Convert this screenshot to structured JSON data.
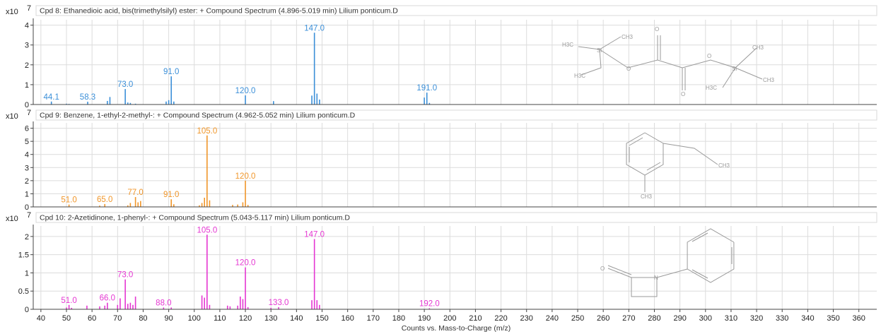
{
  "chart_data": {
    "type": "bar",
    "x_axis": {
      "label": "Counts vs. Mass-to-Charge (m/z)",
      "range": [
        37,
        367
      ],
      "ticks": [
        40,
        50,
        60,
        70,
        80,
        90,
        100,
        110,
        120,
        130,
        140,
        150,
        160,
        170,
        180,
        190,
        200,
        210,
        220,
        230,
        240,
        250,
        260,
        270,
        280,
        290,
        300,
        310,
        320,
        330,
        340,
        350,
        360
      ]
    },
    "panels": [
      {
        "title": "Cpd 8: Ethanedioic acid, bis(trimethylsilyl) ester: + Compound Spectrum (4.896-5.019 min) Lilium ponticum.D",
        "exponent_base": "x10",
        "exponent_power": "7",
        "color": "#3b8fd8",
        "ylim": [
          0,
          4.2
        ],
        "yticks": [
          0,
          1,
          2,
          3,
          4
        ],
        "peaks": [
          {
            "x": 44.1,
            "y": 0.15,
            "label": "44.1"
          },
          {
            "x": 50,
            "y": 0.04
          },
          {
            "x": 51,
            "y": 0.03
          },
          {
            "x": 58.3,
            "y": 0.14,
            "label": "58.3"
          },
          {
            "x": 66,
            "y": 0.18
          },
          {
            "x": 67,
            "y": 0.38
          },
          {
            "x": 73.0,
            "y": 0.78,
            "label": "73.0"
          },
          {
            "x": 74,
            "y": 0.1
          },
          {
            "x": 75,
            "y": 0.08
          },
          {
            "x": 77,
            "y": 0.04
          },
          {
            "x": 89,
            "y": 0.15
          },
          {
            "x": 90,
            "y": 0.22
          },
          {
            "x": 91.0,
            "y": 1.42,
            "label": "91.0"
          },
          {
            "x": 92,
            "y": 0.15
          },
          {
            "x": 120.0,
            "y": 0.46,
            "label": "120.0"
          },
          {
            "x": 131,
            "y": 0.17
          },
          {
            "x": 146,
            "y": 0.45
          },
          {
            "x": 147.0,
            "y": 3.62,
            "label": "147.0"
          },
          {
            "x": 148,
            "y": 0.55
          },
          {
            "x": 149,
            "y": 0.25
          },
          {
            "x": 190,
            "y": 0.35
          },
          {
            "x": 191.0,
            "y": 0.6,
            "label": "191.0"
          },
          {
            "x": 192,
            "y": 0.08
          }
        ],
        "structure": {
          "labels": [
            "CH3",
            "H3C",
            "Si",
            "H3C",
            "O",
            "O",
            "O",
            "O",
            "CH3",
            "Si",
            "H3C",
            "CH3"
          ]
        }
      },
      {
        "title": "Cpd 9: Benzene, 1-ethyl-2-methyl-: + Compound Spectrum (4.962-5.052 min) Lilium ponticum.D",
        "exponent_base": "x10",
        "exponent_power": "7",
        "color": "#f0962a",
        "ylim": [
          0,
          6.3
        ],
        "yticks": [
          0,
          1,
          2,
          3,
          4,
          5,
          6
        ],
        "peaks": [
          {
            "x": 51.0,
            "y": 0.18,
            "label": "51.0"
          },
          {
            "x": 63,
            "y": 0.1
          },
          {
            "x": 65.0,
            "y": 0.22,
            "label": "65.0"
          },
          {
            "x": 74,
            "y": 0.12
          },
          {
            "x": 75,
            "y": 0.3
          },
          {
            "x": 77.0,
            "y": 0.75,
            "label": "77.0"
          },
          {
            "x": 78,
            "y": 0.35
          },
          {
            "x": 79,
            "y": 0.45
          },
          {
            "x": 91.0,
            "y": 0.58,
            "label": "91.0"
          },
          {
            "x": 92,
            "y": 0.2
          },
          {
            "x": 102,
            "y": 0.12
          },
          {
            "x": 103,
            "y": 0.3
          },
          {
            "x": 104,
            "y": 0.7
          },
          {
            "x": 105.0,
            "y": 5.45,
            "label": "105.0"
          },
          {
            "x": 106,
            "y": 0.5
          },
          {
            "x": 115,
            "y": 0.15
          },
          {
            "x": 117,
            "y": 0.18
          },
          {
            "x": 119,
            "y": 0.35
          },
          {
            "x": 120.0,
            "y": 2.0,
            "label": "120.0"
          },
          {
            "x": 121,
            "y": 0.15
          }
        ],
        "structure": {
          "labels": [
            "CH3",
            "CH3"
          ]
        }
      },
      {
        "title": "Cpd 10: 2-Azetidinone, 1-phenyl-: + Compound Spectrum (5.043-5.117 min) Lilium ponticum.D",
        "exponent_base": "x10",
        "exponent_power": "7",
        "color": "#e536d2",
        "ylim": [
          0,
          2.25
        ],
        "yticks": [
          0,
          0.5,
          1,
          1.5,
          2
        ],
        "ytick_labels": [
          "0",
          "0.5",
          "1",
          "1.5",
          "2"
        ],
        "peaks": [
          {
            "x": 50,
            "y": 0.05
          },
          {
            "x": 51.0,
            "y": 0.12,
            "label": "51.0"
          },
          {
            "x": 52,
            "y": 0.04
          },
          {
            "x": 58,
            "y": 0.1
          },
          {
            "x": 63,
            "y": 0.08
          },
          {
            "x": 65,
            "y": 0.1
          },
          {
            "x": 66.0,
            "y": 0.18,
            "label": "66.0"
          },
          {
            "x": 70,
            "y": 0.12
          },
          {
            "x": 71,
            "y": 0.3
          },
          {
            "x": 73.0,
            "y": 0.82,
            "label": "73.0"
          },
          {
            "x": 74,
            "y": 0.15
          },
          {
            "x": 75,
            "y": 0.18
          },
          {
            "x": 76,
            "y": 0.12
          },
          {
            "x": 77,
            "y": 0.35
          },
          {
            "x": 88.0,
            "y": 0.05,
            "label": "88.0"
          },
          {
            "x": 91,
            "y": 0.05
          },
          {
            "x": 103,
            "y": 0.38
          },
          {
            "x": 104,
            "y": 0.32
          },
          {
            "x": 105.0,
            "y": 2.05,
            "label": "105.0"
          },
          {
            "x": 106,
            "y": 0.12
          },
          {
            "x": 113,
            "y": 0.1
          },
          {
            "x": 114,
            "y": 0.08
          },
          {
            "x": 117,
            "y": 0.1
          },
          {
            "x": 118,
            "y": 0.35
          },
          {
            "x": 119,
            "y": 0.28
          },
          {
            "x": 120.0,
            "y": 1.15,
            "label": "120.0"
          },
          {
            "x": 121,
            "y": 0.06
          },
          {
            "x": 130,
            "y": 0.04
          },
          {
            "x": 133.0,
            "y": 0.06,
            "label": "133.0"
          },
          {
            "x": 146,
            "y": 0.25
          },
          {
            "x": 147.0,
            "y": 1.93,
            "label": "147.0"
          },
          {
            "x": 148,
            "y": 0.25
          },
          {
            "x": 149,
            "y": 0.12
          },
          {
            "x": 192.0,
            "y": 0.03,
            "label": "192.0"
          }
        ],
        "structure": {
          "labels": [
            "O",
            "N"
          ]
        }
      }
    ]
  }
}
